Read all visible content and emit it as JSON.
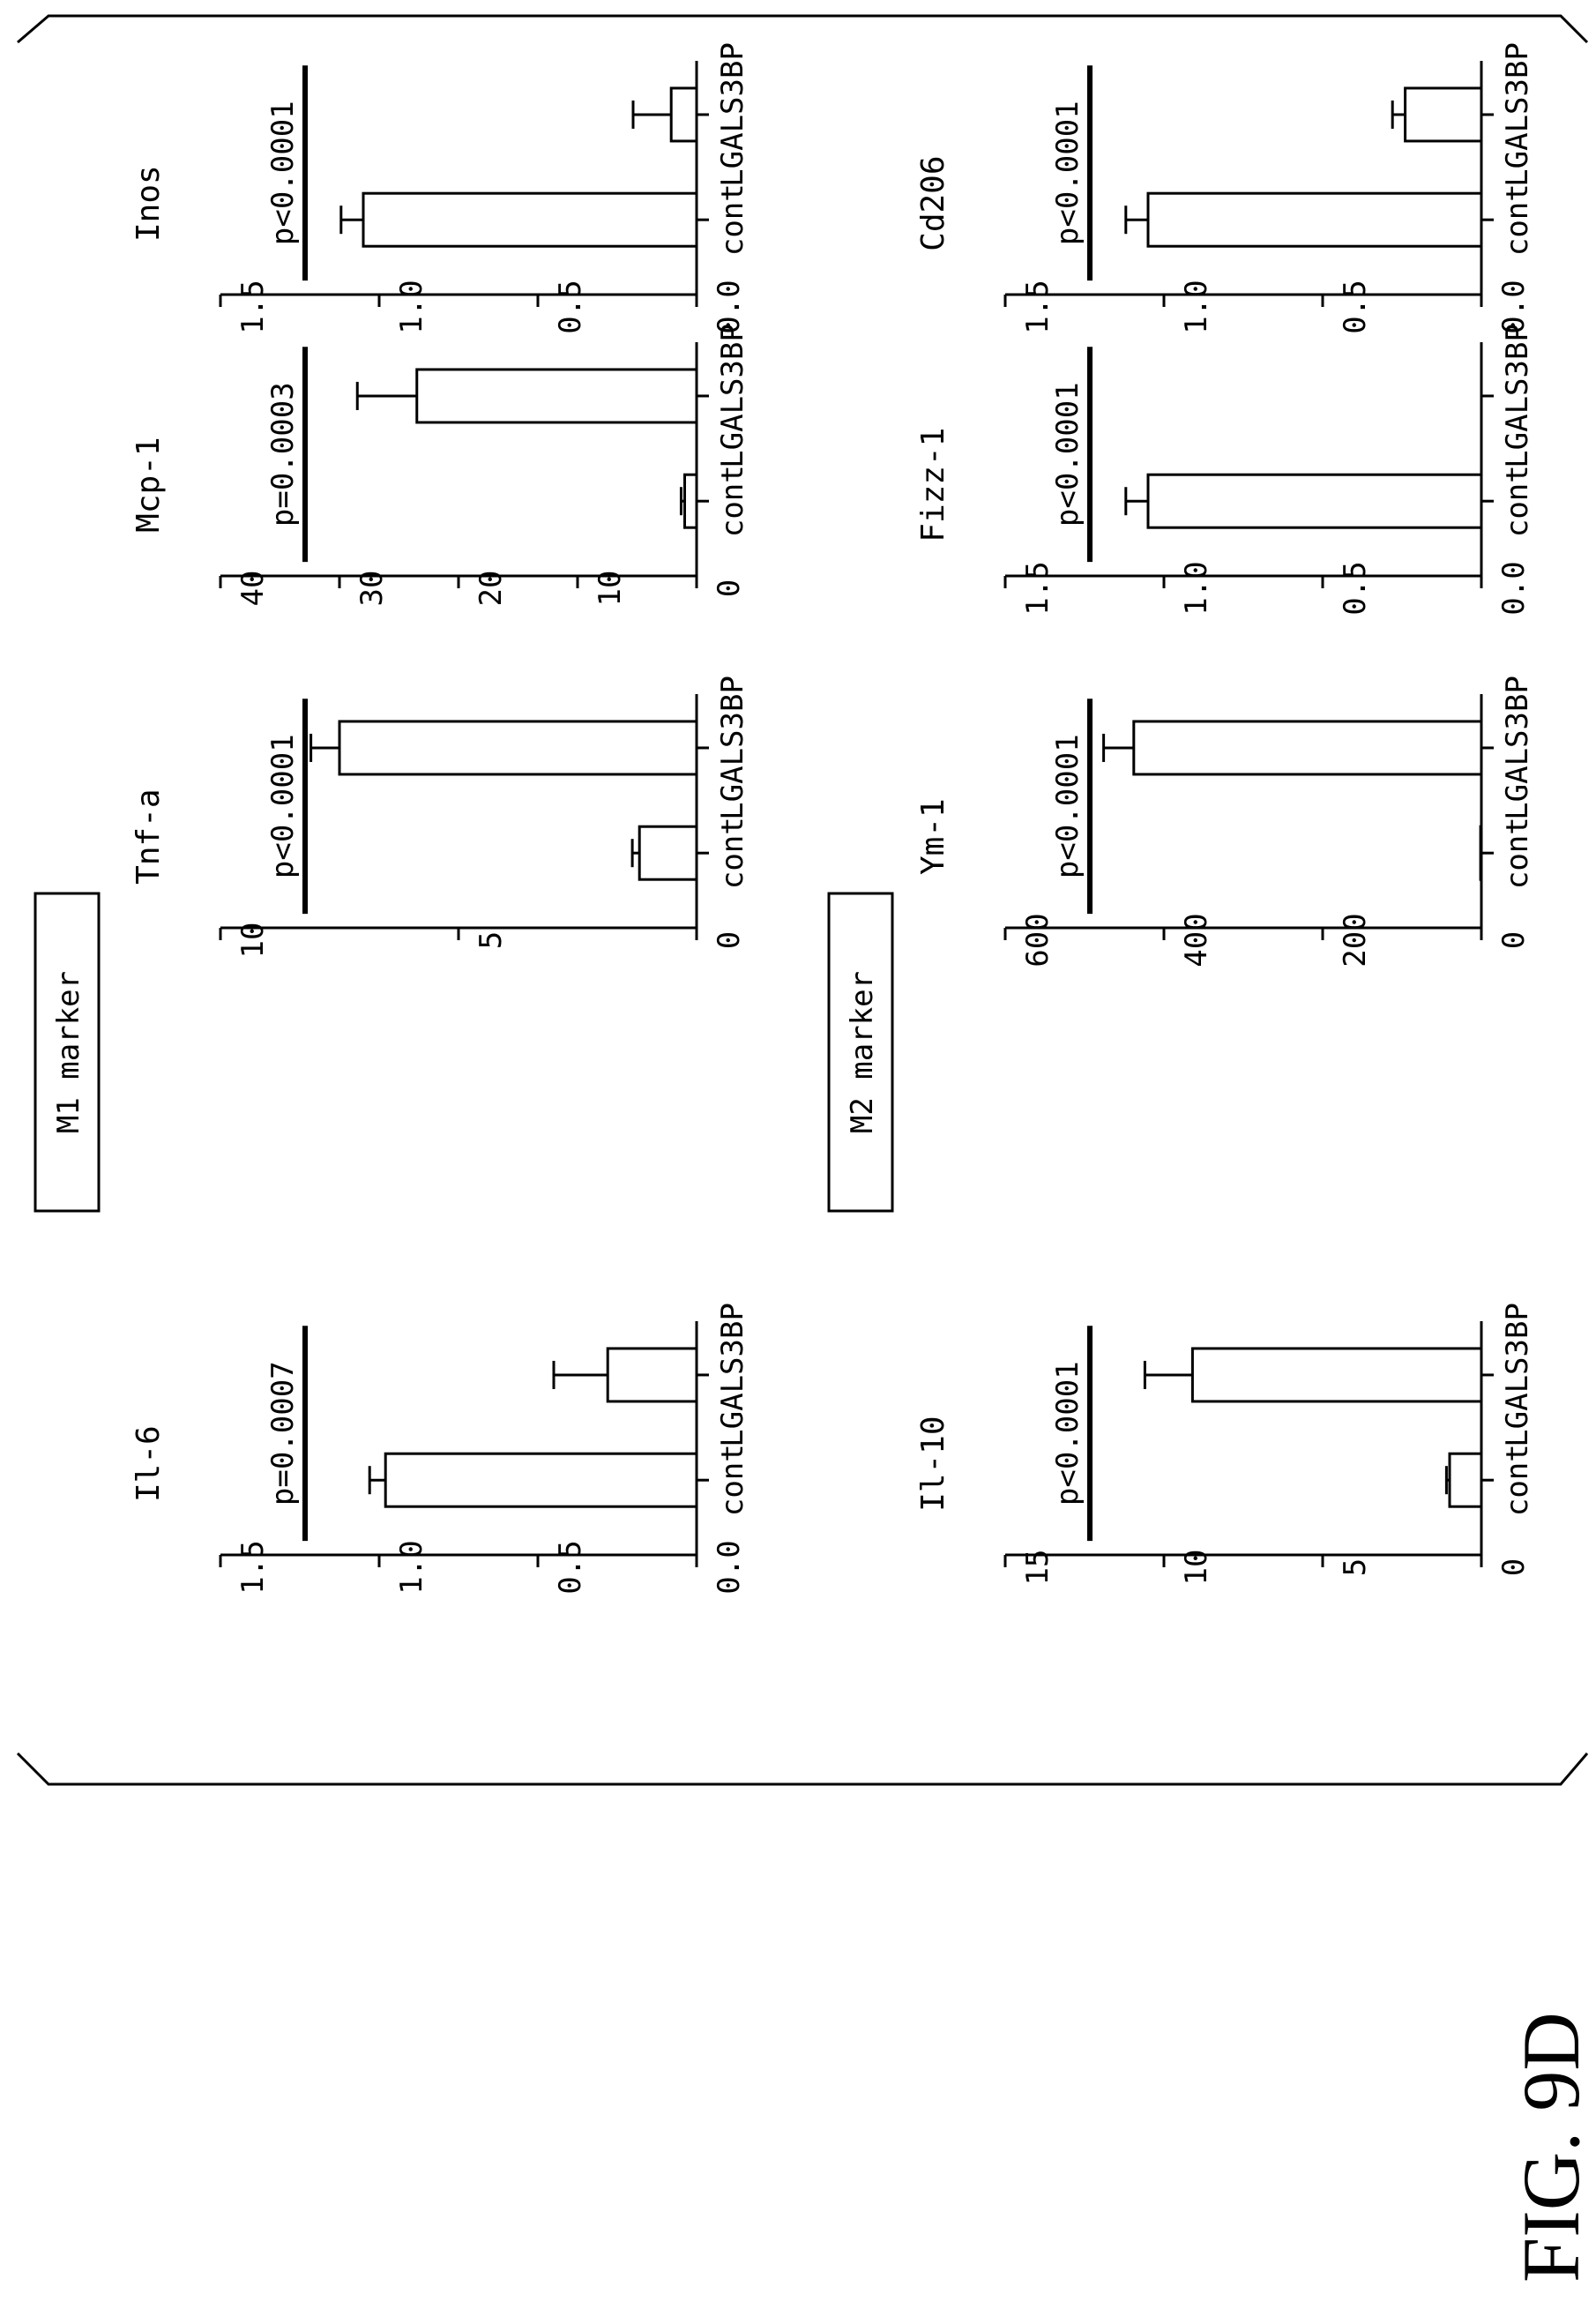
{
  "figure": {
    "label": "FIG. 9D",
    "groups": [
      "M1 marker",
      "M2 marker"
    ]
  },
  "chart_data": [
    {
      "type": "bar",
      "group": "M1 marker",
      "title": "Il-6",
      "categories": [
        "cont",
        "LGALS3BP"
      ],
      "values": [
        0.98,
        0.28
      ],
      "errors": [
        0.05,
        0.17
      ],
      "ylim": [
        0,
        1.5
      ],
      "yticks": [
        "0.0",
        "0.5",
        "1.0",
        "1.5"
      ],
      "pvalue": "p=0.0007"
    },
    {
      "type": "bar",
      "group": "M1 marker",
      "title": "Tnf-a",
      "categories": [
        "cont",
        "LGALS3BP"
      ],
      "values": [
        1.2,
        7.5
      ],
      "errors": [
        0.15,
        0.6
      ],
      "ylim": [
        0,
        10
      ],
      "yticks": [
        "0",
        "5",
        "10"
      ],
      "pvalue": "p<0.0001"
    },
    {
      "type": "bar",
      "group": "M1 marker",
      "title": "Mcp-1",
      "categories": [
        "cont",
        "LGALS3BP"
      ],
      "values": [
        1.0,
        23.5
      ],
      "errors": [
        0.3,
        5.0
      ],
      "ylim": [
        0,
        40
      ],
      "yticks": [
        "0",
        "10",
        "20",
        "30",
        "40"
      ],
      "pvalue": "p=0.0003"
    },
    {
      "type": "bar",
      "group": "M1 marker",
      "title": "Inos",
      "categories": [
        "cont",
        "LGALS3BP"
      ],
      "values": [
        1.05,
        0.08
      ],
      "errors": [
        0.07,
        0.12
      ],
      "ylim": [
        0,
        1.5
      ],
      "yticks": [
        "0.0",
        "0.5",
        "1.0",
        "1.5"
      ],
      "pvalue": "p<0.0001"
    },
    {
      "type": "bar",
      "group": "M2 marker",
      "title": "Il-10",
      "categories": [
        "cont",
        "LGALS3BP"
      ],
      "values": [
        1.0,
        9.1
      ],
      "errors": [
        0.1,
        1.5
      ],
      "ylim": [
        0,
        15
      ],
      "yticks": [
        "0",
        "5",
        "10",
        "15"
      ],
      "pvalue": "p<0.0001"
    },
    {
      "type": "bar",
      "group": "M2 marker",
      "title": "Ym-1",
      "categories": [
        "cont",
        "LGALS3BP"
      ],
      "values": [
        1.0,
        438
      ],
      "errors": [
        0,
        38
      ],
      "ylim": [
        0,
        600
      ],
      "yticks": [
        "0",
        "200",
        "400",
        "600"
      ],
      "pvalue": "p<0.0001"
    },
    {
      "type": "bar",
      "group": "M2 marker",
      "title": "Fizz-1",
      "categories": [
        "cont",
        "LGALS3BP"
      ],
      "values": [
        1.05,
        0.0
      ],
      "errors": [
        0.07,
        0
      ],
      "ylim": [
        0,
        1.5
      ],
      "yticks": [
        "0.0",
        "0.5",
        "1.0",
        "1.5"
      ],
      "pvalue": "p<0.0001"
    },
    {
      "type": "bar",
      "group": "M2 marker",
      "title": "Cd206",
      "categories": [
        "cont",
        "LGALS3BP"
      ],
      "values": [
        1.05,
        0.24
      ],
      "errors": [
        0.07,
        0.04
      ],
      "ylim": [
        0,
        1.5
      ],
      "yticks": [
        "0.0",
        "0.5",
        "1.0",
        "1.5"
      ],
      "pvalue": "p<0.0001"
    }
  ]
}
